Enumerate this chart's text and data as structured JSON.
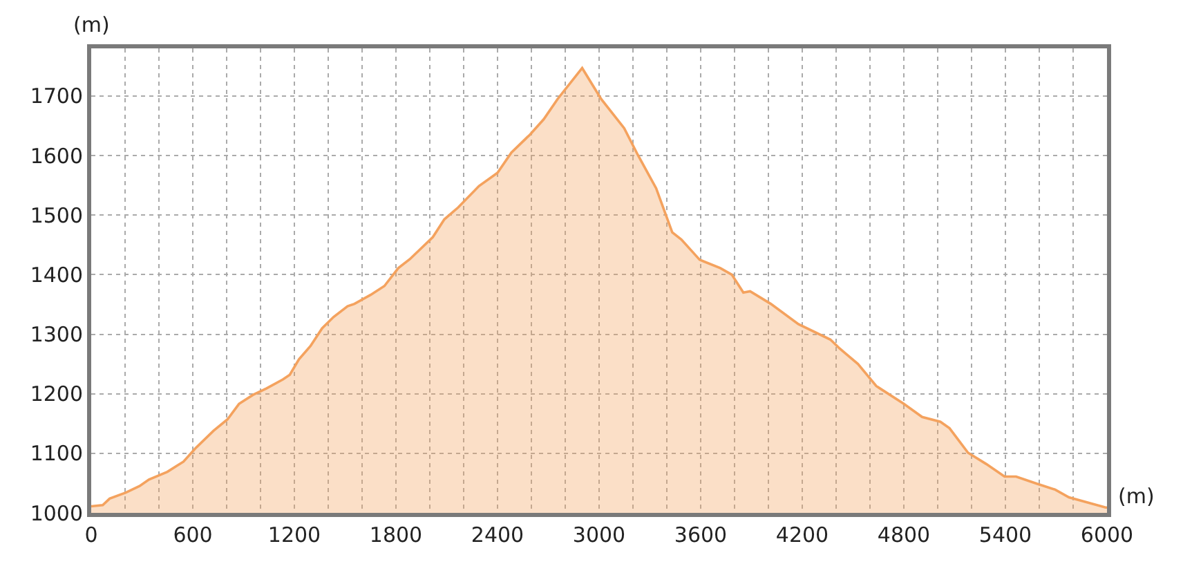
{
  "chart_data": {
    "type": "area",
    "xlabel": "(m)",
    "ylabel": "(m)",
    "x": [
      0,
      68,
      109,
      205,
      286,
      341,
      450,
      545,
      614,
      723,
      805,
      873,
      955,
      1036,
      1132,
      1173,
      1227,
      1295,
      1364,
      1432,
      1514,
      1555,
      1650,
      1732,
      1814,
      1882,
      2018,
      2086,
      2168,
      2291,
      2400,
      2482,
      2591,
      2673,
      2755,
      2900,
      3012,
      3148,
      3229,
      3337,
      3432,
      3486,
      3594,
      3716,
      3784,
      3852,
      3892,
      4014,
      4177,
      4366,
      4421,
      4529,
      4637,
      4800,
      4908,
      5016,
      5070,
      5179,
      5287,
      5395,
      5463,
      5585,
      5694,
      5775,
      5992,
      6000
    ],
    "series": [
      {
        "color": "#f4a25e",
        "values": [
          1011,
          1013,
          1024,
          1034,
          1045,
          1056,
          1069,
          1086,
          1108,
          1138,
          1157,
          1183,
          1198,
          1209,
          1224,
          1232,
          1258,
          1280,
          1310,
          1329,
          1347,
          1351,
          1366,
          1381,
          1411,
          1426,
          1463,
          1493,
          1513,
          1549,
          1571,
          1605,
          1635,
          1661,
          1695,
          1747,
          1695,
          1646,
          1601,
          1545,
          1471,
          1459,
          1425,
          1411,
          1400,
          1370,
          1372,
          1351,
          1317,
          1291,
          1276,
          1250,
          1213,
          1183,
          1161,
          1153,
          1142,
          1101,
          1082,
          1061,
          1061,
          1049,
          1039,
          1026,
          1009,
          1009
        ]
      }
    ],
    "xlim": [
      0,
      6000
    ],
    "xticks": [
      0,
      {
        "value": 200,
        "label": null
      },
      {
        "value": 400,
        "label": null
      },
      600,
      {
        "value": 800,
        "label": null
      },
      {
        "value": 1000,
        "label": null
      },
      1200,
      {
        "value": 1400,
        "label": null
      },
      {
        "value": 1600,
        "label": null
      },
      1800,
      {
        "value": 2000,
        "label": null
      },
      {
        "value": 2200,
        "label": null
      },
      2400,
      {
        "value": 2600,
        "label": null
      },
      {
        "value": 2800,
        "label": null
      },
      3000,
      {
        "value": 3200,
        "label": null
      },
      {
        "value": 3400,
        "label": null
      },
      3600,
      {
        "value": 3800,
        "label": null
      },
      {
        "value": 4000,
        "label": null
      },
      4200,
      {
        "value": 4400,
        "label": null
      },
      {
        "value": 4600,
        "label": null
      },
      4800,
      {
        "value": 5000,
        "label": null
      },
      {
        "value": 5200,
        "label": null
      },
      5400,
      {
        "value": 5600,
        "label": null
      },
      {
        "value": 5800,
        "label": null
      },
      6000
    ],
    "ylim": [
      1000,
      1780
    ],
    "yticks": [
      1000,
      1100,
      1200,
      1300,
      1400,
      1500,
      1600,
      1700
    ],
    "grid": true,
    "line_style": "solid",
    "marker": "none"
  }
}
